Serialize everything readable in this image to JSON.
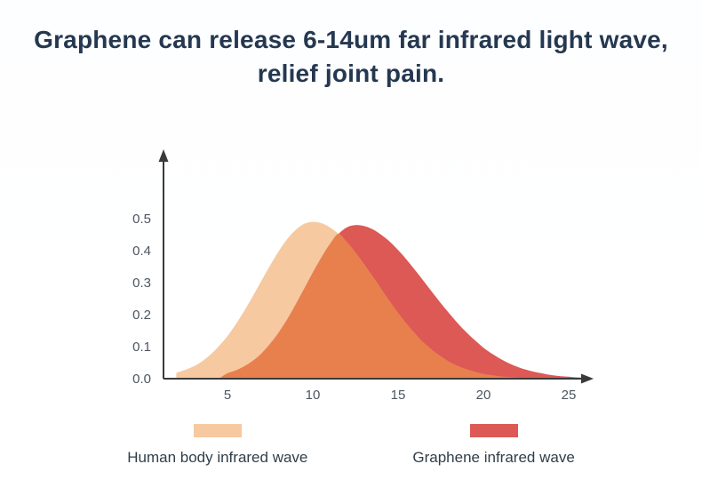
{
  "title": {
    "line1": "Graphene can release 6-14um far infrared light wave,",
    "line2": "relief joint pain."
  },
  "chart_data": {
    "type": "area",
    "title": "Graphene can release 6-14um far infrared light wave, relief joint pain.",
    "xlabel": "",
    "ylabel": "",
    "xlim": [
      1.5,
      27
    ],
    "ylim": [
      0,
      0.55
    ],
    "x_ticks": [
      5,
      10,
      15,
      20,
      25
    ],
    "y_ticks": [
      0,
      0.1,
      0.2,
      0.3,
      0.4,
      0.5
    ],
    "y_tick_labels": [
      "0.0",
      "0.1",
      "0.2",
      "0.3",
      "0.4",
      "0.5"
    ],
    "grid": false,
    "legend_position": "bottom",
    "overlap_color": "#e8804e",
    "axis_color": "#3a3a3a",
    "tick_label_color": "#4d555e",
    "series": [
      {
        "name": "Human body infrared wave",
        "color": "#f6c9a0",
        "peak_x": 10,
        "peak_y": 0.49,
        "points": [
          [
            2,
            0.018
          ],
          [
            2.5,
            0.027
          ],
          [
            3,
            0.038
          ],
          [
            3.5,
            0.054
          ],
          [
            4,
            0.075
          ],
          [
            4.5,
            0.102
          ],
          [
            5,
            0.133
          ],
          [
            5.5,
            0.171
          ],
          [
            6,
            0.213
          ],
          [
            6.5,
            0.259
          ],
          [
            7,
            0.307
          ],
          [
            7.5,
            0.354
          ],
          [
            8,
            0.398
          ],
          [
            8.5,
            0.436
          ],
          [
            9,
            0.465
          ],
          [
            9.5,
            0.484
          ],
          [
            10,
            0.49
          ],
          [
            10.5,
            0.486
          ],
          [
            11,
            0.473
          ],
          [
            11.5,
            0.453
          ],
          [
            12,
            0.427
          ],
          [
            12.5,
            0.395
          ],
          [
            13,
            0.359
          ],
          [
            13.5,
            0.321
          ],
          [
            14,
            0.282
          ],
          [
            14.5,
            0.243
          ],
          [
            15,
            0.206
          ],
          [
            15.5,
            0.172
          ],
          [
            16,
            0.141
          ],
          [
            16.5,
            0.113
          ],
          [
            17,
            0.09
          ],
          [
            17.5,
            0.07
          ],
          [
            18,
            0.053
          ],
          [
            18.5,
            0.04
          ],
          [
            19,
            0.03
          ],
          [
            19.5,
            0.022
          ],
          [
            20,
            0.015
          ],
          [
            20.5,
            0.011
          ],
          [
            21,
            0.007
          ],
          [
            21.5,
            0.005
          ],
          [
            22,
            0.003
          ]
        ]
      },
      {
        "name": "Graphene infrared wave",
        "color": "#dc5956",
        "peak_x": 12.5,
        "peak_y": 0.48,
        "points": [
          [
            5,
            0.017
          ],
          [
            5.5,
            0.026
          ],
          [
            6,
            0.039
          ],
          [
            6.5,
            0.056
          ],
          [
            7,
            0.079
          ],
          [
            7.5,
            0.109
          ],
          [
            8,
            0.144
          ],
          [
            8.5,
            0.185
          ],
          [
            9,
            0.232
          ],
          [
            9.5,
            0.281
          ],
          [
            10,
            0.331
          ],
          [
            10.5,
            0.378
          ],
          [
            11,
            0.42
          ],
          [
            11.5,
            0.452
          ],
          [
            12,
            0.473
          ],
          [
            12.5,
            0.48
          ],
          [
            13,
            0.477
          ],
          [
            13.5,
            0.467
          ],
          [
            14,
            0.45
          ],
          [
            14.5,
            0.429
          ],
          [
            15,
            0.402
          ],
          [
            15.5,
            0.372
          ],
          [
            16,
            0.339
          ],
          [
            16.5,
            0.305
          ],
          [
            17,
            0.27
          ],
          [
            17.5,
            0.236
          ],
          [
            18,
            0.204
          ],
          [
            18.5,
            0.173
          ],
          [
            19,
            0.145
          ],
          [
            19.5,
            0.12
          ],
          [
            20,
            0.097
          ],
          [
            20.5,
            0.078
          ],
          [
            21,
            0.062
          ],
          [
            21.5,
            0.048
          ],
          [
            22,
            0.037
          ],
          [
            22.5,
            0.028
          ],
          [
            23,
            0.021
          ],
          [
            23.5,
            0.016
          ],
          [
            24,
            0.011
          ],
          [
            24.5,
            0.008
          ],
          [
            25,
            0.006
          ],
          [
            25.5,
            0.004
          ],
          [
            26,
            0.003
          ]
        ]
      }
    ]
  },
  "legend": {
    "items": [
      {
        "label": "Human body infrared wave",
        "color": "#f6c9a0"
      },
      {
        "label": "Graphene infrared wave",
        "color": "#dc5956"
      }
    ]
  }
}
